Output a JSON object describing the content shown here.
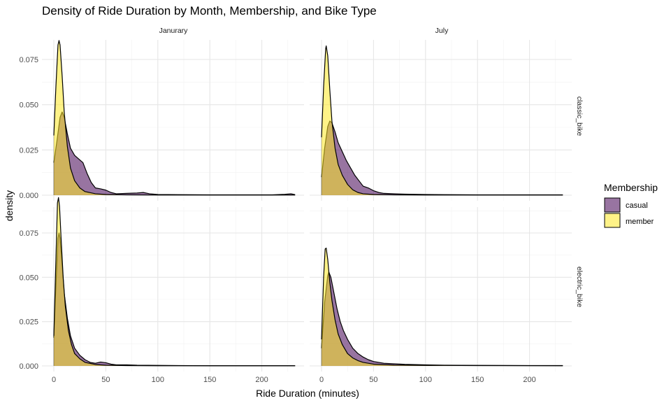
{
  "chart_data": {
    "type": "area",
    "subtype": "faceted density",
    "title": "Density of Ride Duration by Month, Membership, and Bike Type",
    "xlabel": "Ride Duration (minutes)",
    "ylabel": "density",
    "xlim": [
      0,
      232
    ],
    "ylim": [
      0,
      0.092
    ],
    "x_ticks": [
      0,
      50,
      100,
      150,
      200
    ],
    "x_tick_labels": [
      "0",
      "50",
      "100",
      "150",
      "200"
    ],
    "y_ticks": [
      0,
      0.025,
      0.05,
      0.075
    ],
    "y_tick_labels": [
      "0.000",
      "0.025",
      "0.050",
      "0.075"
    ],
    "columns": [
      "Janurary",
      "July"
    ],
    "rows": [
      "classic_bike",
      "electric_bike"
    ],
    "grid": true,
    "legend": {
      "title": "Membership",
      "placement": "right",
      "entries": [
        {
          "label": "casual",
          "color": "#440154"
        },
        {
          "label": "member",
          "color": "#FDE725"
        }
      ]
    },
    "colors": {
      "casual": "#440154",
      "member": "#FDE725",
      "fill_opacity": 0.55
    },
    "panels": [
      {
        "column": "Janurary",
        "row": "classic_bike",
        "series": [
          {
            "name": "casual",
            "points": [
              [
                0,
                0.018
              ],
              [
                3,
                0.03
              ],
              [
                6,
                0.043
              ],
              [
                8,
                0.046
              ],
              [
                10,
                0.043
              ],
              [
                13,
                0.034
              ],
              [
                16,
                0.026
              ],
              [
                20,
                0.022
              ],
              [
                24,
                0.02
              ],
              [
                28,
                0.018
              ],
              [
                32,
                0.012
              ],
              [
                36,
                0.007
              ],
              [
                40,
                0.004
              ],
              [
                45,
                0.0035
              ],
              [
                50,
                0.0028
              ],
              [
                55,
                0.0015
              ],
              [
                60,
                0.0008
              ],
              [
                70,
                0.001
              ],
              [
                80,
                0.0012
              ],
              [
                86,
                0.0015
              ],
              [
                92,
                0.0008
              ],
              [
                100,
                0.0004
              ],
              [
                120,
                0.0003
              ],
              [
                150,
                0.0002
              ],
              [
                180,
                0.0002
              ],
              [
                210,
                0.0002
              ],
              [
                222,
                0.0005
              ],
              [
                228,
                0.0008
              ],
              [
                232,
                0.0003
              ]
            ]
          },
          {
            "name": "member",
            "points": [
              [
                0,
                0.033
              ],
              [
                2,
                0.06
              ],
              [
                4,
                0.083
              ],
              [
                5,
                0.0855
              ],
              [
                6,
                0.083
              ],
              [
                8,
                0.066
              ],
              [
                10,
                0.046
              ],
              [
                13,
                0.027
              ],
              [
                16,
                0.015
              ],
              [
                20,
                0.008
              ],
              [
                25,
                0.004
              ],
              [
                30,
                0.002
              ],
              [
                40,
                0.0008
              ],
              [
                50,
                0.0004
              ],
              [
                70,
                0.0002
              ],
              [
                100,
                0.0001
              ],
              [
                150,
                0.0001
              ],
              [
                200,
                0.0001
              ],
              [
                232,
                0.0001
              ]
            ]
          }
        ]
      },
      {
        "column": "July",
        "row": "classic_bike",
        "series": [
          {
            "name": "casual",
            "points": [
              [
                0,
                0.01
              ],
              [
                3,
                0.026
              ],
              [
                6,
                0.038
              ],
              [
                8,
                0.041
              ],
              [
                10,
                0.04
              ],
              [
                13,
                0.035
              ],
              [
                16,
                0.029
              ],
              [
                20,
                0.024
              ],
              [
                24,
                0.019
              ],
              [
                28,
                0.015
              ],
              [
                32,
                0.011
              ],
              [
                36,
                0.008
              ],
              [
                40,
                0.005
              ],
              [
                45,
                0.004
              ],
              [
                50,
                0.0025
              ],
              [
                55,
                0.0015
              ],
              [
                60,
                0.001
              ],
              [
                70,
                0.0008
              ],
              [
                80,
                0.0006
              ],
              [
                100,
                0.0004
              ],
              [
                120,
                0.0003
              ],
              [
                150,
                0.0002
              ],
              [
                200,
                0.0002
              ],
              [
                232,
                0.0002
              ]
            ]
          },
          {
            "name": "member",
            "points": [
              [
                0,
                0.032
              ],
              [
                2,
                0.06
              ],
              [
                4,
                0.081
              ],
              [
                4.5,
                0.0825
              ],
              [
                6,
                0.077
              ],
              [
                8,
                0.058
              ],
              [
                10,
                0.041
              ],
              [
                13,
                0.026
              ],
              [
                16,
                0.017
              ],
              [
                20,
                0.011
              ],
              [
                25,
                0.006
              ],
              [
                30,
                0.003
              ],
              [
                35,
                0.0015
              ],
              [
                40,
                0.0008
              ],
              [
                50,
                0.0004
              ],
              [
                70,
                0.0002
              ],
              [
                100,
                0.0001
              ],
              [
                150,
                0.0001
              ],
              [
                232,
                0.0001
              ]
            ]
          }
        ]
      },
      {
        "column": "Janurary",
        "row": "electric_bike",
        "series": [
          {
            "name": "casual",
            "points": [
              [
                0,
                0.016
              ],
              [
                2,
                0.045
              ],
              [
                4,
                0.072
              ],
              [
                5,
                0.075
              ],
              [
                6,
                0.072
              ],
              [
                8,
                0.057
              ],
              [
                10,
                0.041
              ],
              [
                13,
                0.027
              ],
              [
                16,
                0.017
              ],
              [
                20,
                0.01
              ],
              [
                25,
                0.006
              ],
              [
                30,
                0.0035
              ],
              [
                35,
                0.002
              ],
              [
                40,
                0.0015
              ],
              [
                45,
                0.0022
              ],
              [
                50,
                0.0018
              ],
              [
                55,
                0.001
              ],
              [
                60,
                0.0006
              ],
              [
                70,
                0.0006
              ],
              [
                80,
                0.0004
              ],
              [
                100,
                0.0003
              ],
              [
                150,
                0.0001
              ],
              [
                232,
                0.0001
              ]
            ]
          },
          {
            "name": "member",
            "points": [
              [
                0,
                0.017
              ],
              [
                2,
                0.06
              ],
              [
                3.5,
                0.092
              ],
              [
                4.5,
                0.095
              ],
              [
                5.5,
                0.09
              ],
              [
                7,
                0.072
              ],
              [
                9,
                0.05
              ],
              [
                11,
                0.034
              ],
              [
                14,
                0.02
              ],
              [
                17,
                0.012
              ],
              [
                20,
                0.007
              ],
              [
                25,
                0.004
              ],
              [
                30,
                0.002
              ],
              [
                40,
                0.0008
              ],
              [
                50,
                0.0004
              ],
              [
                70,
                0.0002
              ],
              [
                100,
                0.0001
              ],
              [
                150,
                0.0001
              ],
              [
                232,
                0.0001
              ]
            ]
          }
        ]
      },
      {
        "column": "July",
        "row": "electric_bike",
        "series": [
          {
            "name": "casual",
            "points": [
              [
                0,
                0.01
              ],
              [
                3,
                0.036
              ],
              [
                6,
                0.051
              ],
              [
                7,
                0.053
              ],
              [
                9,
                0.05
              ],
              [
                12,
                0.041
              ],
              [
                15,
                0.032
              ],
              [
                18,
                0.025
              ],
              [
                21,
                0.02
              ],
              [
                25,
                0.015
              ],
              [
                30,
                0.01
              ],
              [
                35,
                0.007
              ],
              [
                40,
                0.005
              ],
              [
                45,
                0.0035
              ],
              [
                50,
                0.0025
              ],
              [
                55,
                0.002
              ],
              [
                60,
                0.0015
              ],
              [
                70,
                0.0012
              ],
              [
                80,
                0.0009
              ],
              [
                100,
                0.0006
              ],
              [
                120,
                0.0004
              ],
              [
                150,
                0.0003
              ],
              [
                200,
                0.0002
              ],
              [
                232,
                0.0002
              ]
            ]
          },
          {
            "name": "member",
            "points": [
              [
                0,
                0.015
              ],
              [
                2,
                0.05
              ],
              [
                3.5,
                0.066
              ],
              [
                4.5,
                0.0665
              ],
              [
                6,
                0.06
              ],
              [
                8,
                0.047
              ],
              [
                10,
                0.037
              ],
              [
                13,
                0.026
              ],
              [
                16,
                0.018
              ],
              [
                20,
                0.012
              ],
              [
                25,
                0.007
              ],
              [
                30,
                0.0045
              ],
              [
                35,
                0.003
              ],
              [
                40,
                0.002
              ],
              [
                50,
                0.001
              ],
              [
                70,
                0.0005
              ],
              [
                100,
                0.0003
              ],
              [
                150,
                0.0002
              ],
              [
                232,
                0.0001
              ]
            ]
          }
        ]
      }
    ]
  }
}
